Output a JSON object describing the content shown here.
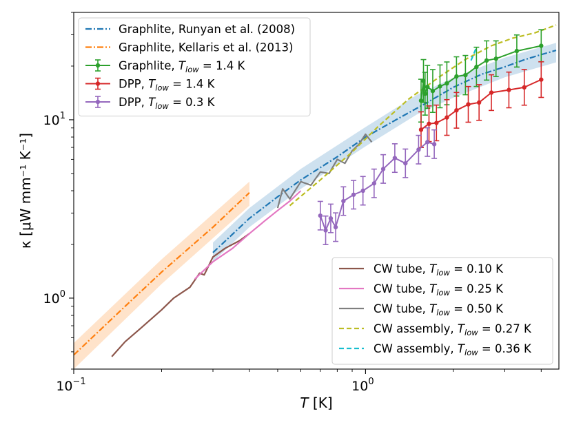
{
  "chart_data": {
    "type": "line",
    "x_scale": "log",
    "y_scale": "log",
    "xlim": [
      0.1,
      4.6
    ],
    "ylim": [
      0.4,
      40
    ],
    "xlabel": "T [K]",
    "ylabel": "κ [μW mm⁻¹ K⁻¹]",
    "x_ticks": [
      {
        "value": 0.1,
        "base": "10",
        "exp": "−1"
      },
      {
        "value": 1.0,
        "base": "10",
        "exp": "0"
      }
    ],
    "y_ticks": [
      {
        "value": 1.0,
        "base": "10",
        "exp": "0"
      },
      {
        "value": 10.0,
        "base": "10",
        "exp": "1"
      }
    ],
    "legend_upper_left": {
      "placement": "top-left",
      "entries": [
        {
          "label": "Graphlite, Runyan et al. (2008)",
          "color": "#1f77b4",
          "style": "dashdot"
        },
        {
          "label": "Graphlite, Kellaris et al. (2013)",
          "color": "#ff7f0e",
          "style": "dashdot"
        },
        {
          "label": "Graphlite, T_low = 1.4 K",
          "color": "#2ca02c",
          "style": "errorbar",
          "prefix": "Graphlite, ",
          "sub": "low",
          "suffix": " = 1.4 K"
        },
        {
          "label": "DPP, T_low = 1.4 K",
          "color": "#d62728",
          "style": "errorbar",
          "prefix": "DPP, ",
          "sub": "low",
          "suffix": " = 1.4 K"
        },
        {
          "label": "DPP, T_low = 0.3 K",
          "color": "#9467bd",
          "style": "errorbar",
          "prefix": "DPP, ",
          "sub": "low",
          "suffix": " = 0.3 K"
        }
      ]
    },
    "legend_lower_right": {
      "placement": "bottom-right",
      "entries": [
        {
          "label": "CW tube, T_low = 0.10 K",
          "color": "#8c564b",
          "style": "solid",
          "prefix": "CW tube, ",
          "sub": "low",
          "suffix": " = 0.10 K"
        },
        {
          "label": "CW tube, T_low = 0.25 K",
          "color": "#e377c2",
          "style": "solid",
          "prefix": "CW tube, ",
          "sub": "low",
          "suffix": " = 0.25 K"
        },
        {
          "label": "CW tube, T_low = 0.50 K",
          "color": "#7f7f7f",
          "style": "solid",
          "prefix": "CW tube, ",
          "sub": "low",
          "suffix": " = 0.50 K"
        },
        {
          "label": "CW assembly, T_low = 0.27 K",
          "color": "#bcbd22",
          "style": "dashed",
          "prefix": "CW assembly, ",
          "sub": "low",
          "suffix": " = 0.27 K"
        },
        {
          "label": "CW assembly, T_low = 0.36 K",
          "color": "#17becf",
          "style": "dashed",
          "prefix": "CW assembly, ",
          "sub": "low",
          "suffix": " = 0.36 K"
        }
      ]
    },
    "bands": [
      {
        "series": "Graphlite, Runyan et al. (2008)",
        "color": "#1f77b4",
        "x": [
          0.3,
          0.4,
          0.6,
          1.0,
          1.5,
          2.0,
          3.0,
          4.5
        ],
        "lower": [
          1.6,
          2.5,
          4.1,
          7.1,
          10.7,
          13.3,
          17.3,
          21.0
        ],
        "upper": [
          2.05,
          3.2,
          5.3,
          9.1,
          13.8,
          17.2,
          22.3,
          27.0
        ]
      },
      {
        "series": "Graphlite, Kellaris et al. (2013)",
        "color": "#ff7f0e",
        "x": [
          0.1,
          0.2,
          0.4
        ],
        "lower": [
          0.4,
          1.2,
          3.3
        ],
        "upper": [
          0.56,
          1.65,
          4.5
        ]
      }
    ],
    "series": [
      {
        "name": "Graphlite, Runyan et al. (2008)",
        "color": "#1f77b4",
        "style": "dashdot",
        "x": [
          0.3,
          0.4,
          0.5,
          0.6,
          0.8,
          1.0,
          1.3,
          1.6,
          2.0,
          2.5,
          3.0,
          3.5,
          4.0,
          4.5
        ],
        "y": [
          1.8,
          2.8,
          3.7,
          4.6,
          6.2,
          8.0,
          10.2,
          12.3,
          15.2,
          18.0,
          19.8,
          21.7,
          23.2,
          24.5
        ]
      },
      {
        "name": "Graphlite, Kellaris et al. (2013)",
        "color": "#ff7f0e",
        "style": "dashdot",
        "x": [
          0.1,
          0.15,
          0.2,
          0.3,
          0.4
        ],
        "y": [
          0.48,
          0.9,
          1.4,
          2.5,
          3.9
        ]
      },
      {
        "name": "CW tube, T_low = 0.10 K",
        "color": "#8c564b",
        "style": "solid",
        "x": [
          0.135,
          0.15,
          0.17,
          0.2,
          0.22,
          0.25,
          0.27,
          0.28,
          0.3,
          0.33,
          0.37,
          0.4
        ],
        "y": [
          0.47,
          0.57,
          0.68,
          0.86,
          1.0,
          1.15,
          1.38,
          1.35,
          1.7,
          1.9,
          2.1,
          2.3
        ]
      },
      {
        "name": "CW tube, T_low = 0.25 K",
        "color": "#e377c2",
        "style": "solid",
        "x": [
          0.26,
          0.3,
          0.35,
          0.4,
          0.45,
          0.5,
          0.55,
          0.6
        ],
        "y": [
          1.28,
          1.6,
          1.9,
          2.3,
          2.7,
          3.1,
          3.5,
          4.0
        ]
      },
      {
        "name": "CW tube, T_low = 0.50 K",
        "color": "#7f7f7f",
        "style": "solid",
        "x": [
          0.5,
          0.52,
          0.55,
          0.6,
          0.65,
          0.7,
          0.75,
          0.8,
          0.85,
          0.9,
          0.95,
          1.0,
          1.05
        ],
        "y": [
          3.2,
          4.1,
          3.6,
          4.5,
          4.3,
          5.1,
          5.0,
          6.0,
          5.7,
          6.7,
          7.3,
          8.3,
          7.5
        ]
      },
      {
        "name": "CW assembly, T_low = 0.27 K",
        "color": "#bcbd22",
        "style": "dashed",
        "x": [
          0.55,
          0.7,
          0.9,
          1.1,
          1.4,
          1.8,
          2.2,
          2.7,
          3.2,
          3.8,
          4.5
        ],
        "y": [
          3.3,
          4.6,
          6.6,
          9.1,
          13.0,
          17.5,
          21.8,
          26.0,
          28.7,
          30.7,
          34.0
        ]
      },
      {
        "name": "CW assembly, T_low = 0.36 K",
        "color": "#17becf",
        "style": "dashed",
        "x": [
          2.3,
          2.4
        ],
        "y": [
          21.5,
          25.5
        ]
      },
      {
        "name": "Graphlite, T_low = 1.4 K",
        "color": "#2ca02c",
        "style": "errorbar",
        "x": [
          1.55,
          1.58,
          1.6,
          1.63,
          1.7,
          1.8,
          1.9,
          2.05,
          2.2,
          2.4,
          2.6,
          2.8,
          3.3,
          4.0
        ],
        "y": [
          12.8,
          16.5,
          14.0,
          15.3,
          14.5,
          15.4,
          16.0,
          17.5,
          17.8,
          19.8,
          21.5,
          22.0,
          24.3,
          26.0
        ],
        "err": [
          0.12,
          0.12,
          0.12,
          0.12,
          0.12,
          0.12,
          0.12,
          0.11,
          0.11,
          0.11,
          0.11,
          0.1,
          0.09,
          0.09
        ]
      },
      {
        "name": "DPP, T_low = 1.4 K",
        "color": "#d62728",
        "style": "errorbar",
        "x": [
          1.55,
          1.65,
          1.75,
          1.9,
          2.05,
          2.25,
          2.45,
          2.7,
          3.1,
          3.5,
          4.0
        ],
        "y": [
          8.8,
          9.5,
          9.6,
          10.3,
          11.3,
          12.2,
          12.5,
          14.2,
          14.7,
          15.2,
          16.8
        ],
        "err": [
          0.1,
          0.1,
          0.1,
          0.1,
          0.1,
          0.1,
          0.1,
          0.1,
          0.1,
          0.1,
          0.1
        ]
      },
      {
        "name": "DPP, T_low = 0.3 K",
        "color": "#9467bd",
        "style": "errorbar",
        "x": [
          0.7,
          0.73,
          0.76,
          0.79,
          0.84,
          0.91,
          0.98,
          1.07,
          1.15,
          1.26,
          1.37,
          1.52,
          1.63,
          1.72
        ],
        "y": [
          2.9,
          2.4,
          2.8,
          2.5,
          3.5,
          3.8,
          4.0,
          4.4,
          5.3,
          6.1,
          5.7,
          6.8,
          7.5,
          7.3
        ],
        "err": [
          0.08,
          0.08,
          0.08,
          0.08,
          0.08,
          0.08,
          0.08,
          0.08,
          0.08,
          0.08,
          0.08,
          0.08,
          0.08,
          0.08
        ]
      }
    ]
  }
}
